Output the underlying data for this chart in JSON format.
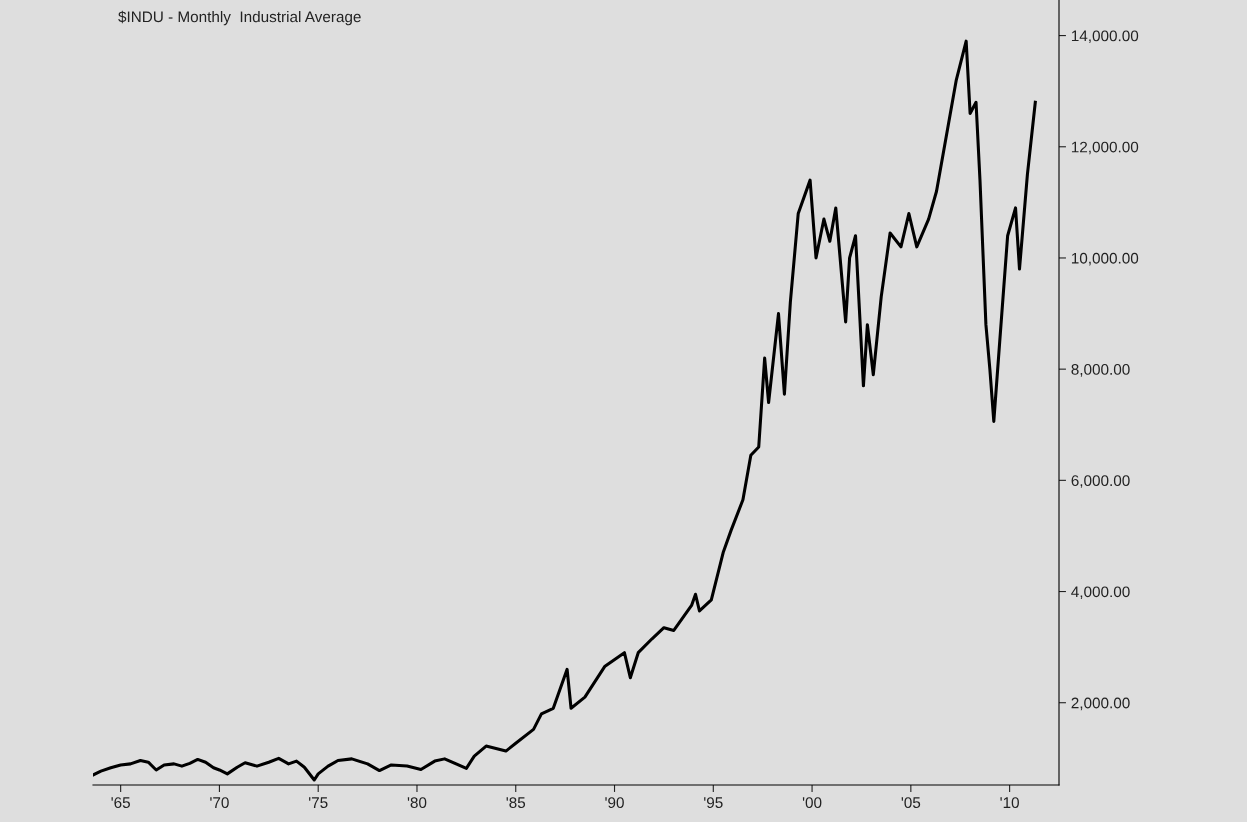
{
  "chart_data": {
    "type": "line",
    "title": "$INDU - Monthly  Industrial Average",
    "x": [
      1963.6,
      1964.0,
      1964.5,
      1965.0,
      1965.5,
      1966.0,
      1966.4,
      1966.8,
      1967.2,
      1967.7,
      1968.1,
      1968.5,
      1968.9,
      1969.3,
      1969.7,
      1970.0,
      1970.4,
      1970.9,
      1971.3,
      1971.9,
      1972.5,
      1973.0,
      1973.5,
      1973.9,
      1974.3,
      1974.8,
      1975.0,
      1975.5,
      1976.0,
      1976.7,
      1977.5,
      1978.1,
      1978.7,
      1979.5,
      1980.2,
      1980.9,
      1981.4,
      1982.5,
      1982.9,
      1983.5,
      1984.5,
      1985.0,
      1985.9,
      1986.3,
      1986.9,
      1987.6,
      1987.8,
      1988.5,
      1989.5,
      1989.9,
      1990.5,
      1990.8,
      1991.2,
      1991.9,
      1992.5,
      1993.0,
      1993.9,
      1994.1,
      1994.3,
      1994.9,
      1995.5,
      1995.9,
      1996.5,
      1996.9,
      1997.3,
      1997.6,
      1997.8,
      1998.3,
      1998.6,
      1998.9,
      1999.3,
      1999.9,
      2000.2,
      2000.6,
      2000.9,
      2001.2,
      2001.7,
      2001.9,
      2002.2,
      2002.6,
      2002.8,
      2003.1,
      2003.5,
      2003.95,
      2004.5,
      2004.9,
      2005.3,
      2005.9,
      2006.3,
      2006.9,
      2007.3,
      2007.8,
      2008.0,
      2008.3,
      2008.5,
      2008.8,
      2009.0,
      2009.2,
      2009.5,
      2009.9,
      2010.3,
      2010.5,
      2010.9,
      2011.3
    ],
    "series": [
      {
        "color": "#000000",
        "values": [
          700,
          770,
          830,
          880,
          900,
          960,
          930,
          790,
          880,
          900,
          860,
          910,
          980,
          930,
          830,
          790,
          720,
          840,
          920,
          860,
          930,
          1000,
          900,
          950,
          840,
          610,
          720,
          860,
          960,
          990,
          900,
          780,
          880,
          860,
          800,
          950,
          990,
          820,
          1040,
          1220,
          1130,
          1270,
          1520,
          1800,
          1900,
          2600,
          1900,
          2100,
          2650,
          2750,
          2900,
          2450,
          2900,
          3150,
          3350,
          3300,
          3750,
          3950,
          3650,
          3850,
          4700,
          5100,
          5650,
          6450,
          6600,
          8200,
          7400,
          9000,
          7550,
          9200,
          10800,
          11400,
          10000,
          10700,
          10300,
          10900,
          8850,
          10000,
          10400,
          7700,
          8800,
          7900,
          9300,
          10450,
          10200,
          10800,
          10200,
          10700,
          11200,
          12400,
          13200,
          13900,
          12600,
          12800,
          11400,
          8800,
          8000,
          7060,
          8500,
          10400,
          10900,
          9800,
          11500,
          12800
        ]
      }
    ],
    "xlim": [
      1963.6,
      2012.5
    ],
    "xticks": [
      {
        "value": 1965,
        "label": "'65"
      },
      {
        "value": 1970,
        "label": "'70"
      },
      {
        "value": 1975,
        "label": "'75"
      },
      {
        "value": 1980,
        "label": "'80"
      },
      {
        "value": 1985,
        "label": "'85"
      },
      {
        "value": 1990,
        "label": "'90"
      },
      {
        "value": 1995,
        "label": "'95"
      },
      {
        "value": 2000,
        "label": "'00"
      },
      {
        "value": 2005,
        "label": "'05"
      },
      {
        "value": 2010,
        "label": "'10"
      }
    ],
    "ylim": [
      520,
      14640
    ],
    "yticks": [
      {
        "value": 2000,
        "label": "2,000.00"
      },
      {
        "value": 4000,
        "label": "4,000.00"
      },
      {
        "value": 6000,
        "label": "6,000.00"
      },
      {
        "value": 8000,
        "label": "8,000.00"
      },
      {
        "value": 10000,
        "label": "10,000.00"
      },
      {
        "value": 12000,
        "label": "12,000.00"
      },
      {
        "value": 14000,
        "label": "14,000.00"
      }
    ],
    "grid": false
  }
}
